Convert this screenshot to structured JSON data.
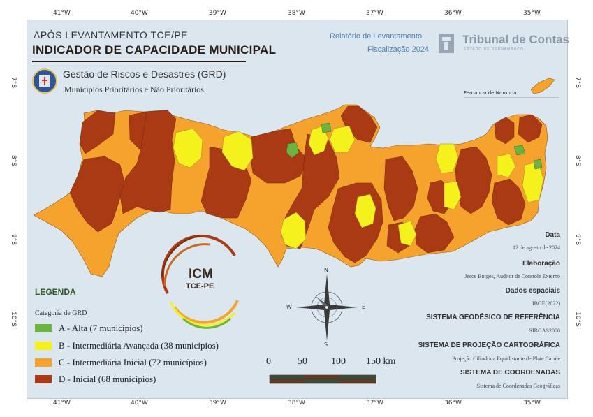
{
  "map": {
    "pre_title": "APÓS LEVANTAMENTO TCE/PE",
    "main_title": "INDICADOR DE CAPACIDADE MUNICIPAL",
    "theme_title": "Gestão de Riscos e Desastres (GRD)",
    "theme_subtitle": "Municípios Prioritários e Não Prioritários",
    "inset_label": "Fernando de Noronha"
  },
  "report": {
    "line1": "Relatório de Levantamento",
    "line2": "Fiscalização 2024"
  },
  "organization": {
    "name": "Tribunal de Contas",
    "subname": "ESTADO DE PERNAMBUCO"
  },
  "graticule": {
    "longitudes": [
      "41°W",
      "40°W",
      "39°W",
      "38°W",
      "37°W",
      "36°W",
      "35°W"
    ],
    "latitudes": [
      "7°S",
      "8°S",
      "9°S",
      "10°S"
    ]
  },
  "legend": {
    "title": "LEGENDA",
    "subtitle": "Categoria de GRD",
    "items": [
      {
        "label": "A - Alta (7 municípios)",
        "color": "#6db33f"
      },
      {
        "label": "B - Intermediária Avançada (38 municípios)",
        "color": "#f5f11d"
      },
      {
        "label": "C - Intermediária Inicial (72 municípios)",
        "color": "#f5a32c"
      },
      {
        "label": "D - Inicial (68 municípios)",
        "color": "#a93a14"
      }
    ]
  },
  "icm_logo": {
    "line1": "ICM",
    "line2": "TCE-PE"
  },
  "compass": {
    "n": "N",
    "s": "S",
    "e": "E",
    "w": "W"
  },
  "scale_bar": {
    "labels": [
      "0",
      "50",
      "100",
      "150 km"
    ]
  },
  "info": {
    "data_label": "Data",
    "data_value": "12 de agosto de 2024",
    "elaboracao_label": "Elaboração",
    "elaboracao_value": "Jesce Borges, Auditor de Controle Externo",
    "dados_label": "Dados espaciais",
    "dados_value": "IBGE(2022)",
    "geodesico_label": "SISTEMA GEODÉSICO DE REFERÊNCIA",
    "geodesico_value": "SIRGAS2000",
    "projecao_label": "SISTEMA DE PROJEÇÃO CARTOGRÁFICA",
    "projecao_value": "Projeção Cilíndrica Equidistante de Plate Carrée",
    "coordenadas_label": "SISTEMA DE COORDENADAS",
    "coordenadas_value": "Sistema de Coordenadas Geográficas"
  }
}
